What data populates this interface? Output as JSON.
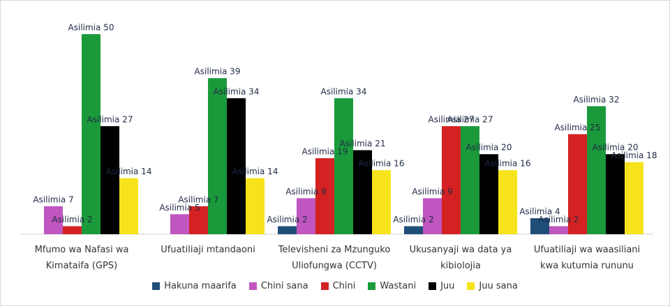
{
  "chart_data": {
    "type": "bar",
    "categories": [
      "Mfumo wa Nafasi wa Kimataifa (GPS)",
      "Ufuatiliaji mtandaoni",
      "Televisheni za Mzunguko Uliofungwa (CCTV)",
      "Ukusanyaji wa data ya kibiolojia",
      "Ufuatiliaji wa waasiliani kwa kutumia rununu"
    ],
    "series": [
      {
        "name": "Hakuna maarifa",
        "color": "#1f4e79",
        "values": [
          null,
          null,
          2,
          2,
          4
        ],
        "value_labels": [
          null,
          null,
          "Asilimia 2",
          "Asilimia 2",
          "Asilimia 4"
        ]
      },
      {
        "name": "Chini sana",
        "color": "#c056c0",
        "values": [
          7,
          5,
          9,
          9,
          2
        ],
        "value_labels": [
          "Asilimia 7",
          "Asilimia 5",
          "Asilimia 9",
          "Asilimia 9",
          "Asilimia 2"
        ]
      },
      {
        "name": "Chini",
        "color": "#d42222",
        "values": [
          2,
          7,
          19,
          27,
          25
        ],
        "value_labels": [
          "Asilimia 2",
          "Asilimia 7",
          "Asilimia 19",
          "Asilimia 27",
          "Asilimia 25"
        ]
      },
      {
        "name": "Wastani",
        "color": "#1b9a3c",
        "values": [
          50,
          39,
          34,
          27,
          32
        ],
        "value_labels": [
          "Asilimia 50",
          "Asilimia 39",
          "Asilimia 34",
          "Asilimia 27",
          "Asilimia 32"
        ]
      },
      {
        "name": "Juu",
        "color": "#000000",
        "values": [
          27,
          34,
          21,
          20,
          20
        ],
        "value_labels": [
          "Asilimia 27",
          "Asilimia 34",
          "Asilimia 21",
          "Asilimia 20",
          "Asilimia 20"
        ]
      },
      {
        "name": "Juu sana",
        "color": "#f6e31c",
        "values": [
          14,
          14,
          16,
          16,
          18
        ],
        "value_labels": [
          "Asilimia 14",
          "Asilimia 14",
          "Asilimia 16",
          "Asilimia 16",
          "Asilimia 18"
        ]
      }
    ],
    "legend": "bottom"
  }
}
